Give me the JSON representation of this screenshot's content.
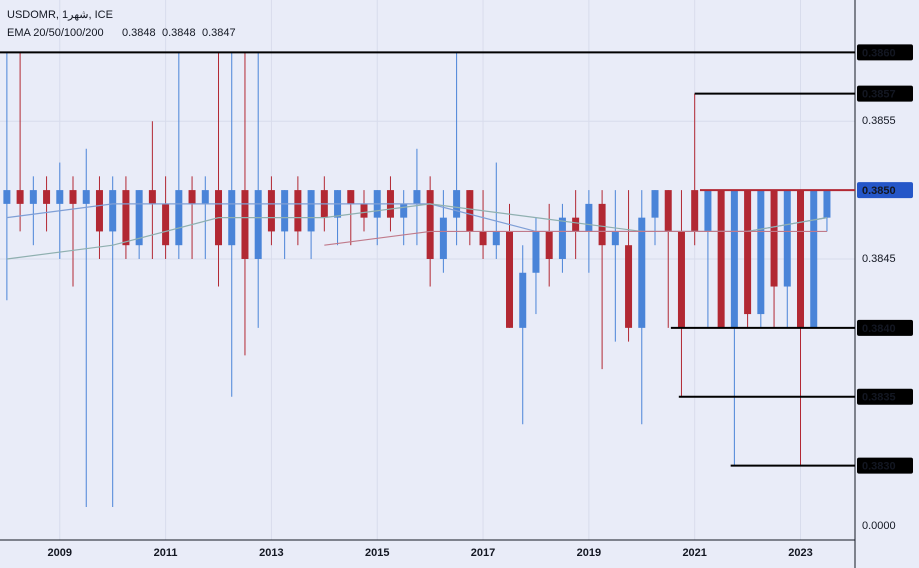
{
  "chart_data": {
    "type": "candlestick",
    "symbol": "USDOMR, 1شهر, ICE",
    "indicator": "EMA 20/50/100/200",
    "indicator_values": [
      {
        "label": "0.3848",
        "color": "#131722"
      },
      {
        "label": "0.3848",
        "color": "#2e7d32"
      },
      {
        "label": "0.3847",
        "color": "#b22833"
      }
    ],
    "x": [
      2008,
      2008.25,
      2008.5,
      2008.75,
      2009,
      2009.25,
      2009.5,
      2009.75,
      2010,
      2010.25,
      2010.5,
      2010.75,
      2011,
      2011.25,
      2011.5,
      2011.75,
      2012,
      2012.25,
      2012.5,
      2012.75,
      2013,
      2013.25,
      2013.5,
      2013.75,
      2014,
      2014.25,
      2014.5,
      2014.75,
      2015,
      2015.25,
      2015.5,
      2015.75,
      2016,
      2016.25,
      2016.5,
      2016.75,
      2017,
      2017.25,
      2017.5,
      2017.75,
      2018,
      2018.25,
      2018.5,
      2018.75,
      2019,
      2019.25,
      2019.5,
      2019.75,
      2020,
      2020.25,
      2020.5,
      2020.75,
      2021,
      2021.25,
      2021.5,
      2021.75,
      2022,
      2022.25,
      2022.5,
      2022.75,
      2023,
      2023.25,
      2023.5
    ],
    "open": [
      0.3849,
      0.385,
      0.3849,
      0.385,
      0.3849,
      0.385,
      0.3849,
      0.385,
      0.3847,
      0.385,
      0.3846,
      0.385,
      0.3849,
      0.3846,
      0.385,
      0.3849,
      0.385,
      0.3846,
      0.385,
      0.3845,
      0.385,
      0.3847,
      0.385,
      0.3847,
      0.385,
      0.3848,
      0.385,
      0.3849,
      0.3848,
      0.385,
      0.3848,
      0.3849,
      0.385,
      0.3845,
      0.3848,
      0.385,
      0.3847,
      0.3846,
      0.3847,
      0.384,
      0.3844,
      0.3847,
      0.3845,
      0.3848,
      0.3847,
      0.3849,
      0.3846,
      0.3846,
      0.384,
      0.3848,
      0.385,
      0.3847,
      0.385,
      0.3847,
      0.385,
      0.384,
      0.385,
      0.3841,
      0.385,
      0.3843,
      0.385,
      0.384,
      0.3848
    ],
    "high": [
      0.386,
      0.386,
      0.3851,
      0.3851,
      0.3852,
      0.3851,
      0.3853,
      0.3851,
      0.3851,
      0.3851,
      0.385,
      0.3855,
      0.3851,
      0.386,
      0.3851,
      0.3851,
      0.386,
      0.386,
      0.386,
      0.386,
      0.3851,
      0.385,
      0.3851,
      0.385,
      0.3851,
      0.385,
      0.385,
      0.385,
      0.385,
      0.3851,
      0.385,
      0.3853,
      0.3851,
      0.385,
      0.386,
      0.385,
      0.385,
      0.3852,
      0.3849,
      0.3846,
      0.3848,
      0.3849,
      0.3849,
      0.385,
      0.385,
      0.385,
      0.385,
      0.385,
      0.385,
      0.385,
      0.385,
      0.385,
      0.3857,
      0.385,
      0.385,
      0.385,
      0.385,
      0.385,
      0.385,
      0.385,
      0.385,
      0.385,
      0.385
    ],
    "low": [
      0.3842,
      0.3847,
      0.3846,
      0.3847,
      0.3845,
      0.3843,
      0.3827,
      0.3845,
      0.3827,
      0.3845,
      0.3845,
      0.3845,
      0.3845,
      0.3845,
      0.3845,
      0.3845,
      0.3843,
      0.3835,
      0.3838,
      0.384,
      0.3846,
      0.3845,
      0.3846,
      0.3845,
      0.3847,
      0.3846,
      0.3846,
      0.3847,
      0.3846,
      0.3847,
      0.3846,
      0.3846,
      0.3843,
      0.3844,
      0.3846,
      0.3846,
      0.3845,
      0.3845,
      0.384,
      0.3833,
      0.3841,
      0.3843,
      0.3844,
      0.3845,
      0.3844,
      0.3837,
      0.3839,
      0.3839,
      0.3833,
      0.3846,
      0.384,
      0.3835,
      0.3846,
      0.384,
      0.384,
      0.383,
      0.384,
      0.384,
      0.384,
      0.384,
      0.383,
      0.384,
      0.3847
    ],
    "close": [
      0.385,
      0.3849,
      0.385,
      0.3849,
      0.385,
      0.3849,
      0.385,
      0.3847,
      0.385,
      0.3846,
      0.385,
      0.3849,
      0.3846,
      0.385,
      0.3849,
      0.385,
      0.3846,
      0.385,
      0.3845,
      0.385,
      0.3847,
      0.385,
      0.3847,
      0.385,
      0.3848,
      0.385,
      0.3849,
      0.3848,
      0.385,
      0.3848,
      0.3849,
      0.385,
      0.3845,
      0.3848,
      0.385,
      0.3847,
      0.3846,
      0.3847,
      0.384,
      0.3844,
      0.3847,
      0.3845,
      0.3848,
      0.3847,
      0.3849,
      0.3846,
      0.3847,
      0.384,
      0.3848,
      0.385,
      0.3847,
      0.384,
      0.3847,
      0.385,
      0.384,
      0.385,
      0.3841,
      0.385,
      0.3843,
      0.385,
      0.384,
      0.385,
      0.385
    ],
    "up_color": "#4a84d8",
    "down_color": "#b22833",
    "ema_x": [
      2008,
      2010,
      2012,
      2014,
      2016,
      2018,
      2020,
      2022,
      2023.5
    ],
    "ema_lines": [
      {
        "color": "#7f9fd6",
        "values": [
          0.3848,
          0.3849,
          0.3849,
          0.3849,
          0.3849,
          0.3847,
          0.3847,
          0.3847,
          0.3848
        ]
      },
      {
        "color": "#8fb0b0",
        "values": [
          0.3845,
          0.3846,
          0.3848,
          0.3848,
          0.3849,
          0.3848,
          0.3847,
          0.3847,
          0.3848
        ]
      },
      {
        "color": "#c07a8a",
        "values": [
          null,
          null,
          null,
          0.3846,
          0.3847,
          0.3847,
          0.3847,
          0.3847,
          0.3847
        ]
      }
    ],
    "xlim": [
      2007.87,
      2024.03
    ],
    "xticks": [
      2009,
      2011,
      2013,
      2015,
      2017,
      2019,
      2021,
      2023
    ],
    "ylim": [
      0.38246,
      0.38638
    ],
    "yticks": [
      0.3855,
      0.3845
    ],
    "axis_floor_label": "0.0000",
    "grid": true,
    "price_lines": [
      {
        "value": 0.386,
        "label": "0.3860",
        "color": "#000000"
      },
      {
        "value": 0.3857,
        "label": "0.3857",
        "color": "#000000",
        "from": 2021
      },
      {
        "value": 0.385,
        "label": "0.3850",
        "color": "#b22833",
        "label_color": "#2456c8",
        "from": 2021.1
      },
      {
        "value": 0.384,
        "label": "0.3840",
        "color": "#000000",
        "from": 2020.55
      },
      {
        "value": 0.3835,
        "label": "0.3835",
        "color": "#000000",
        "from": 2020.7
      },
      {
        "value": 0.383,
        "label": "0.3830",
        "color": "#000000",
        "from": 2021.68
      }
    ]
  }
}
